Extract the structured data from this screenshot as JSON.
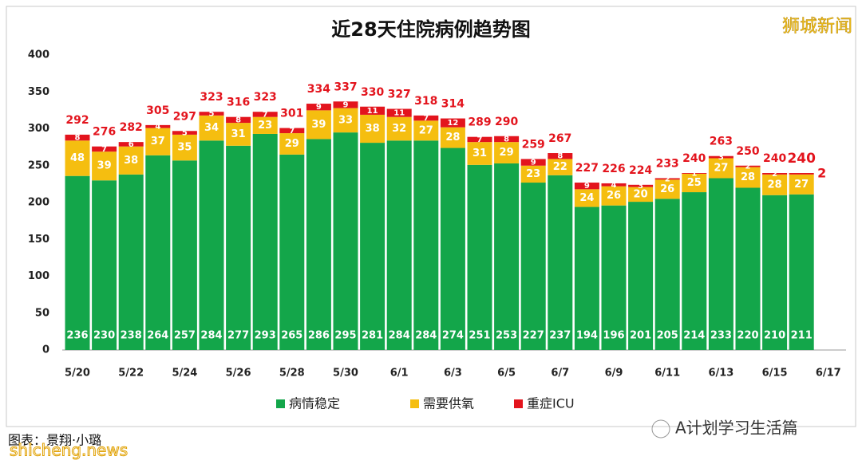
{
  "chart_data": {
    "type": "stacked_bar",
    "title": "近28天住院病例趋势图",
    "categories": [
      "5/20",
      null,
      "5/22",
      null,
      "5/24",
      null,
      "5/26",
      null,
      "5/28",
      null,
      "5/30",
      null,
      "6/1",
      null,
      "6/3",
      null,
      "6/5",
      null,
      "6/7",
      null,
      "6/9",
      null,
      "6/11",
      null,
      "6/13",
      null,
      "6/15",
      null,
      "6/17"
    ],
    "series": [
      {
        "name": "病情稳定",
        "color": "#13a64a",
        "values": [
          236,
          230,
          238,
          264,
          257,
          284,
          277,
          293,
          265,
          286,
          295,
          281,
          284,
          284,
          274,
          251,
          253,
          227,
          237,
          194,
          196,
          201,
          205,
          214,
          233,
          220,
          210,
          211,
          null
        ]
      },
      {
        "name": "需要供氧",
        "color": "#f5be10",
        "values": [
          48,
          39,
          38,
          37,
          35,
          34,
          31,
          23,
          29,
          39,
          33,
          38,
          32,
          27,
          28,
          31,
          29,
          23,
          22,
          24,
          26,
          20,
          26,
          25,
          27,
          28,
          28,
          27,
          null
        ]
      },
      {
        "name": "重症ICU",
        "color": "#e3141d",
        "values": [
          8,
          7,
          6,
          4,
          5,
          5,
          8,
          7,
          7,
          9,
          9,
          11,
          11,
          7,
          12,
          7,
          8,
          9,
          8,
          9,
          4,
          3,
          2,
          1,
          3,
          2,
          2,
          2,
          null
        ]
      }
    ],
    "totals": [
      292,
      276,
      282,
      305,
      297,
      323,
      316,
      323,
      301,
      334,
      337,
      330,
      327,
      318,
      314,
      289,
      290,
      259,
      267,
      227,
      226,
      224,
      233,
      240,
      263,
      250,
      240,
      240,
      null
    ],
    "ylim": [
      0,
      400
    ],
    "yticks": [
      0,
      50,
      100,
      150,
      200,
      250,
      300,
      350,
      400
    ],
    "grid": false,
    "legend": "bottom"
  },
  "overlays": {
    "brand": "狮城新闻",
    "credit": "图表：景翔·小璐",
    "site": "shicheng.news",
    "account": "A计划学习生活篇"
  }
}
